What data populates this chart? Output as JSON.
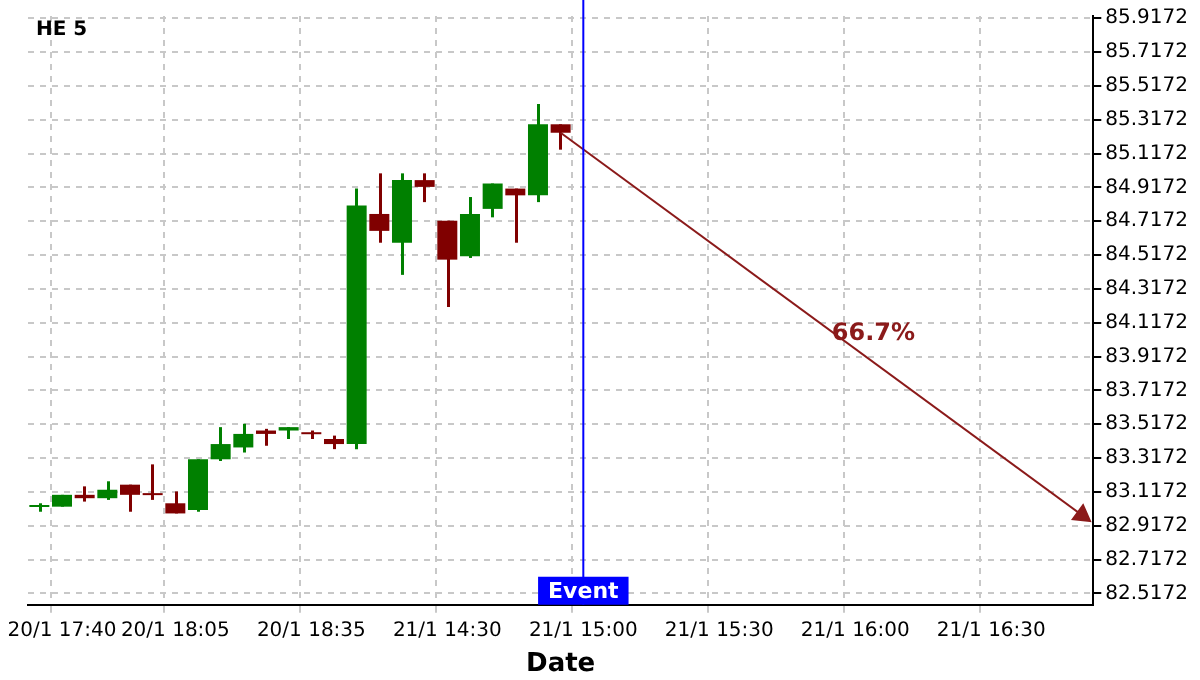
{
  "chart_data": {
    "type": "candlestick",
    "title": "HE 5",
    "xlabel": "Date",
    "categories": [
      null,
      "20/1 17:40",
      null,
      null,
      null,
      null,
      "20/1 18:05",
      null,
      null,
      null,
      null,
      null,
      "20/1 18:35",
      null,
      null,
      null,
      null,
      null,
      "21/1 14:30",
      null,
      null,
      null,
      null,
      null,
      "21/1 15:00",
      null,
      null,
      null,
      null,
      null,
      "21/1 15:30",
      null,
      null,
      null,
      null,
      null,
      "21/1 16:00",
      null,
      null,
      null,
      null,
      null,
      "21/1 16:30",
      null,
      null,
      null,
      null
    ],
    "ohlc": [
      [
        83.03,
        83.05,
        83.0,
        83.04
      ],
      [
        83.03,
        83.1,
        83.03,
        83.1
      ],
      [
        83.1,
        83.15,
        83.06,
        83.08
      ],
      [
        83.08,
        83.18,
        83.07,
        83.13
      ],
      [
        83.16,
        83.16,
        83.0,
        83.1
      ],
      [
        83.11,
        83.28,
        83.07,
        83.1
      ],
      [
        83.05,
        83.12,
        82.99,
        82.99
      ],
      [
        83.01,
        83.31,
        83.0,
        83.31
      ],
      [
        83.31,
        83.5,
        83.3,
        83.4
      ],
      [
        83.38,
        83.52,
        83.35,
        83.46
      ],
      [
        83.48,
        83.49,
        83.39,
        83.46
      ],
      [
        83.48,
        83.5,
        83.43,
        83.5
      ],
      [
        83.47,
        83.48,
        83.43,
        83.46
      ],
      [
        83.43,
        83.45,
        83.37,
        83.4
      ],
      [
        83.4,
        84.91,
        83.37,
        84.81
      ],
      [
        84.76,
        85.0,
        84.59,
        84.66
      ],
      [
        84.59,
        85.0,
        84.4,
        84.96
      ],
      [
        84.96,
        85.0,
        84.83,
        84.92
      ],
      [
        84.72,
        84.72,
        84.21,
        84.49
      ],
      [
        84.51,
        84.86,
        84.5,
        84.76
      ],
      [
        84.79,
        84.94,
        84.74,
        84.94
      ],
      [
        84.91,
        84.91,
        84.59,
        84.87
      ],
      [
        84.87,
        85.41,
        84.83,
        85.29
      ],
      [
        85.29,
        85.29,
        85.14,
        85.24
      ],
      null,
      null,
      null,
      null,
      null,
      null,
      null,
      null,
      null,
      null,
      null,
      null,
      null,
      null,
      null,
      null,
      null,
      null,
      null,
      null,
      null,
      null,
      null
    ],
    "colors": [
      "#008000",
      "#008000",
      "#800000",
      "#008000",
      "#800000",
      "#800000",
      "#800000",
      "#008000",
      "#008000",
      "#008000",
      "#800000",
      "#008000",
      "#800000",
      "#800000",
      "#008000",
      "#800000",
      "#008000",
      "#800000",
      "#800000",
      "#008000",
      "#008000",
      "#800000",
      "#008000",
      "#800000",
      null,
      null,
      null,
      null,
      null,
      null,
      null,
      null,
      null,
      null,
      null,
      null,
      null,
      null,
      null,
      null,
      null,
      null,
      null,
      null,
      null,
      null,
      null
    ],
    "series": [
      {
        "type": "line",
        "color": "#8b1a1a",
        "values": [
          null,
          null,
          null,
          null,
          null,
          null,
          null,
          null,
          null,
          null,
          null,
          null,
          null,
          null,
          null,
          null,
          null,
          null,
          null,
          null,
          null,
          null,
          null,
          85.24,
          null,
          null,
          null,
          null,
          null,
          null,
          null,
          null,
          null,
          null,
          null,
          null,
          null,
          null,
          null,
          null,
          null,
          null,
          null,
          null,
          null,
          null,
          82.98
        ]
      }
    ],
    "ylim": [
      82.45,
      85.93
    ],
    "yticks": [
      82.5172,
      82.7172,
      82.9172,
      83.1172,
      83.3172,
      83.5172,
      83.7172,
      83.9172,
      84.1172,
      84.3172,
      84.5172,
      84.7172,
      84.9172,
      85.1172,
      85.3172,
      85.5172,
      85.7172,
      85.9172
    ],
    "grid": true,
    "legend": false,
    "ref_lines": [
      {
        "axis": "x",
        "value": "21/1 15:00",
        "label": "Event",
        "color": "#0000ff"
      }
    ],
    "annotations": [
      "66.7%"
    ]
  }
}
